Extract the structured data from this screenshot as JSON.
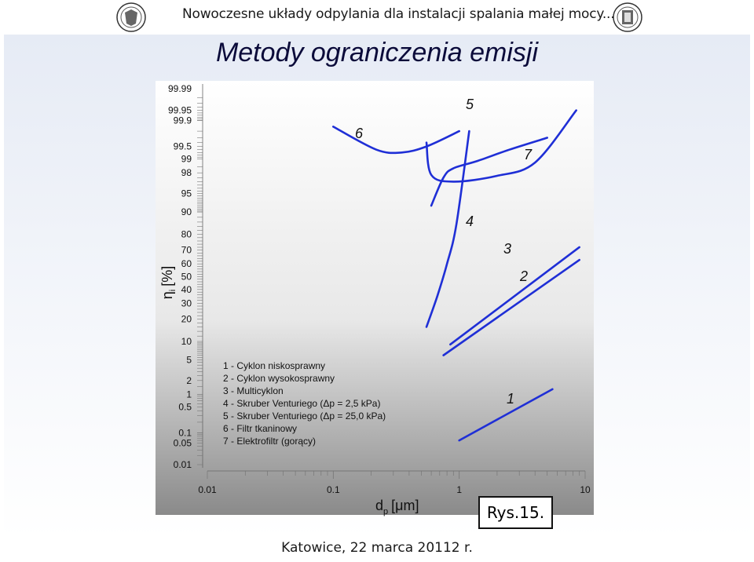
{
  "header": {
    "text": "Nowoczesne układy odpylania dla instalacji spalania małej mocy..."
  },
  "title": "Metody ograniczenia emisji",
  "footer": "Katowice, 22 marca 20112 r.",
  "figure_label": "Rys.15.",
  "chart_data": {
    "type": "line",
    "title": "",
    "xlabel_main": "d",
    "xlabel_sub": "p",
    "xlabel_unit": "[μm]",
    "ylabel_main": "η",
    "ylabel_sub": "i",
    "ylabel_unit": "[%]",
    "x_scale": "log",
    "y_scale": "probability",
    "xlim": [
      0.01,
      10
    ],
    "ylim": [
      0.01,
      99.99
    ],
    "x_ticks": [
      0.01,
      0.1,
      1,
      10
    ],
    "x_tick_labels": [
      "0.01",
      "0.1",
      "1",
      "10"
    ],
    "y_ticks": [
      0.01,
      0.05,
      0.1,
      0.5,
      1,
      2,
      5,
      10,
      20,
      30,
      40,
      50,
      60,
      70,
      80,
      90,
      95,
      98,
      99,
      99.5,
      99.9,
      99.95,
      99.99
    ],
    "y_tick_labels": [
      "0.01",
      "0.05",
      "0.1",
      "0.5",
      "1",
      "2",
      "5",
      "10",
      "20",
      "30",
      "40",
      "50",
      "60",
      "70",
      "80",
      "90",
      "95",
      "98",
      "99",
      "99.5",
      "99.9",
      "99.95",
      "99.99"
    ],
    "grid": false,
    "legend_placement": "bottom-left",
    "legend": [
      "1 - Cyklon niskosprawny",
      "2 - Cyklon wysokosprawny",
      "3 - Multicyklon",
      "4 - Skruber Venturiego (Δp = 2,5 kPa)",
      "5 - Skruber Venturiego (Δp = 25,0 kPa)",
      "6 - Filtr tkaninowy",
      "7 - Elektrofiltr (gorący)"
    ],
    "series": [
      {
        "label": "1",
        "x": [
          1.0,
          5.5
        ],
        "y": [
          0.06,
          1.3
        ]
      },
      {
        "label": "2",
        "x": [
          0.85,
          9.0
        ],
        "y": [
          9.0,
          72.0
        ]
      },
      {
        "label": "3",
        "x": [
          0.75,
          9.0
        ],
        "y": [
          6.0,
          63.0
        ]
      },
      {
        "label": "4",
        "x": [
          0.55,
          0.67,
          0.8,
          0.95,
          1.2
        ],
        "y": [
          16.0,
          35.0,
          60.0,
          85.0,
          99.8
        ]
      },
      {
        "label": "5",
        "x": [
          0.6,
          0.75,
          0.9,
          1.4,
          2.5,
          5.0
        ],
        "y": [
          92.0,
          97.5,
          98.4,
          98.9,
          99.4,
          99.7
        ]
      },
      {
        "label": "6",
        "x": [
          0.1,
          0.22,
          0.35,
          0.55,
          1.0
        ],
        "y": [
          99.85,
          99.4,
          99.3,
          99.5,
          99.8
        ]
      },
      {
        "label": "7",
        "x": [
          0.55,
          0.6,
          0.9,
          2.0,
          4.0,
          8.5
        ],
        "y": [
          99.6,
          97.8,
          97.0,
          97.7,
          98.8,
          99.95
        ]
      }
    ],
    "curve_color": "#1f2fd6",
    "label_color": "#111111"
  }
}
